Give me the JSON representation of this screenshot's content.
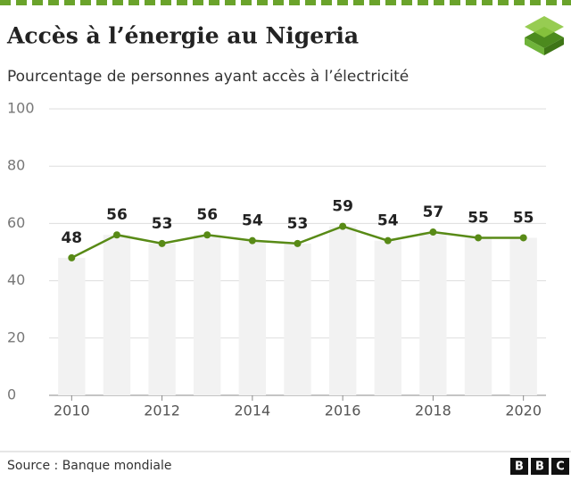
{
  "chart_data": {
    "type": "line",
    "title": "Accès à l’énergie au Nigeria",
    "subtitle": "Pourcentage de personnes ayant accès à l’électricité",
    "x": [
      2010,
      2011,
      2012,
      2013,
      2014,
      2015,
      2016,
      2017,
      2018,
      2019,
      2020
    ],
    "xlim": [
      2009.5,
      2020.5
    ],
    "xticks": [
      2010,
      2012,
      2014,
      2016,
      2018,
      2020
    ],
    "series": [
      {
        "name": "Accès à l’électricité",
        "color": "#588a16",
        "values": [
          48,
          56,
          53,
          56,
          54,
          53,
          59,
          54,
          57,
          55,
          55
        ]
      }
    ],
    "ylim": [
      0,
      100
    ],
    "yticks": [
      0,
      20,
      40,
      60,
      80,
      100
    ],
    "grid": true,
    "source": "Source : Banque mondiale",
    "logo": [
      "B",
      "B",
      "C"
    ]
  }
}
